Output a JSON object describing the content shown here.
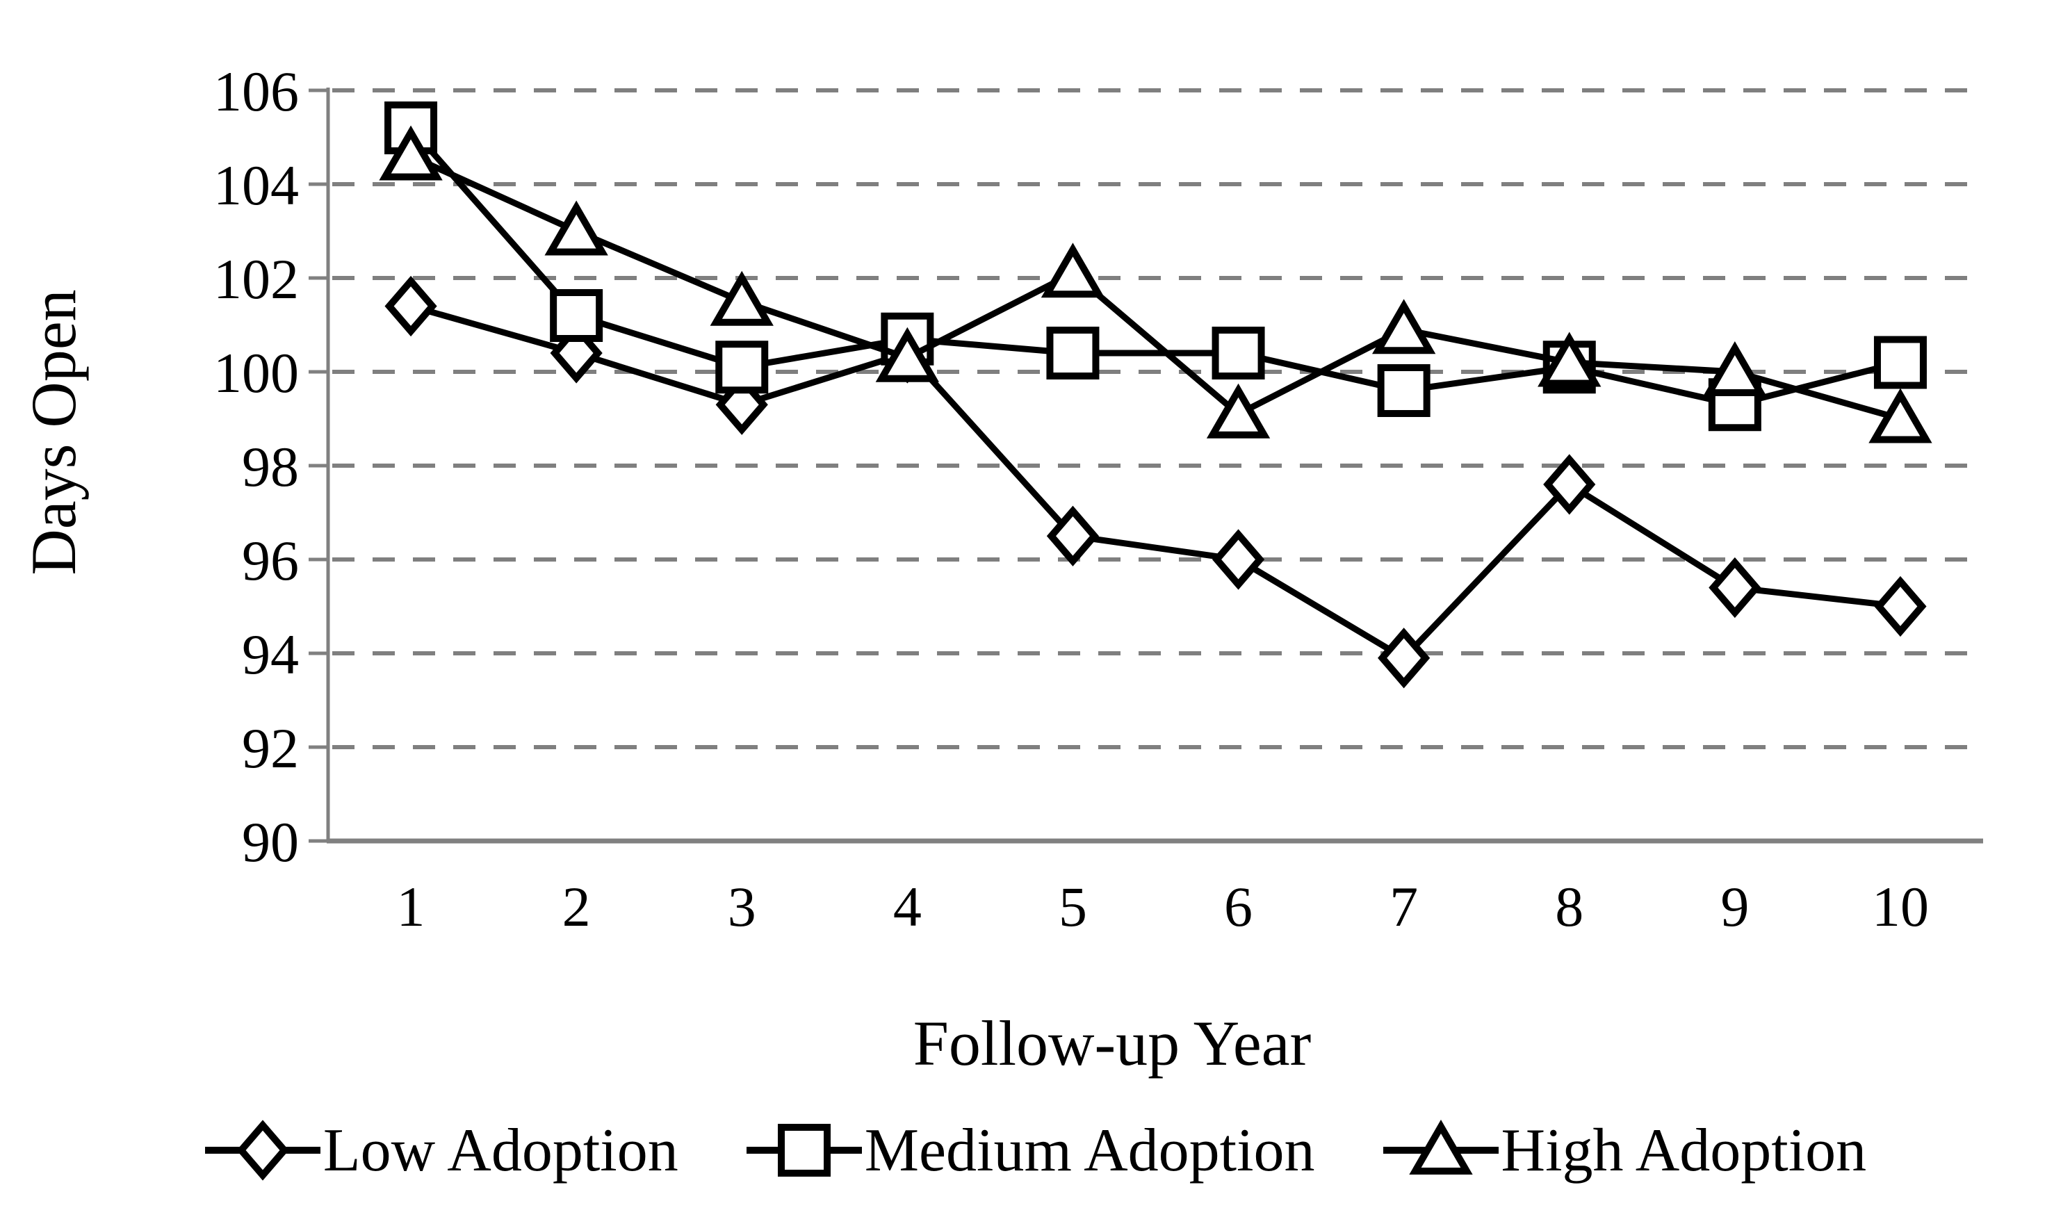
{
  "window": {
    "background": "#ffffff"
  },
  "chart_data": {
    "type": "line",
    "title": "",
    "xlabel": "Follow-up Year",
    "ylabel": "Days Open",
    "categories": [
      "1",
      "2",
      "3",
      "4",
      "5",
      "6",
      "7",
      "8",
      "9",
      "10"
    ],
    "y_ticks": [
      "106",
      "104",
      "102",
      "100",
      "98",
      "96",
      "94",
      "92",
      "90"
    ],
    "ylim": [
      90,
      106
    ],
    "ytick_step": 2,
    "grid": {
      "horizontal": true,
      "style": "dashed",
      "color": "#7f7f7f"
    },
    "axis_color": "#808080",
    "line_color": "#000000",
    "marker_fill": "#ffffff",
    "legend_position": "bottom",
    "series": [
      {
        "name": "Low Adoption",
        "marker": "diamond",
        "values": [
          101.4,
          100.4,
          99.3,
          100.4,
          96.5,
          96.0,
          93.9,
          97.6,
          95.4,
          95.0
        ]
      },
      {
        "name": "Medium Adoption",
        "marker": "square",
        "values": [
          105.2,
          101.2,
          100.1,
          100.7,
          100.4,
          100.4,
          99.6,
          100.1,
          99.3,
          100.2
        ]
      },
      {
        "name": "High Adoption",
        "marker": "triangle",
        "values": [
          104.6,
          103.0,
          101.5,
          100.3,
          102.1,
          99.1,
          100.9,
          100.2,
          100.0,
          99.0
        ]
      }
    ]
  }
}
